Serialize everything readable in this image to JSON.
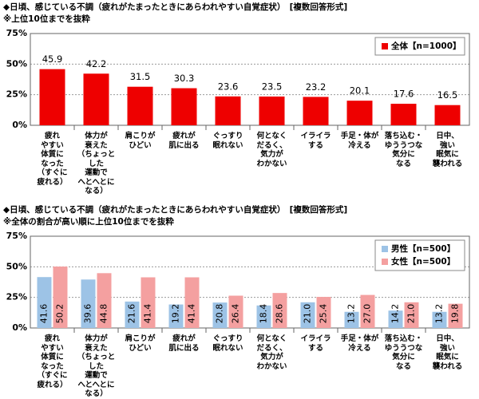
{
  "chart_data": [
    {
      "type": "bar",
      "title": "◆日頃、感じている不調（疲れがたまったときにあらわれやすい自覚症状）　[複数回答形式]",
      "subtitle": "※上位10位までを抜粋",
      "categories": [
        "疲れ\nやすい\n体質に\nなった\n（すぐに\n疲れる）",
        "体力が\n衰えた\n（ちょっとした\n運動で\nへとへとに\nなる）",
        "肩こりが\nひどい",
        "疲れが\n肌に出る",
        "ぐっすり\n眠れない",
        "何となく\nだるく、\n気力が\nわかない",
        "イライラ\nする",
        "手足・体が\n冷える",
        "落ち込む・\nゆううつな\n気分に\nなる",
        "日中、\n強い\n眠気に\n襲われる"
      ],
      "series": [
        {
          "name": "全体【n=1000】",
          "color": "#ee0000",
          "values": [
            45.9,
            42.2,
            31.5,
            30.3,
            23.6,
            23.5,
            23.2,
            20.1,
            17.6,
            16.5
          ]
        }
      ],
      "ylim": [
        0,
        75
      ],
      "yticks": [
        {
          "value": 0,
          "label": "0%"
        },
        {
          "value": 25,
          "label": "25%"
        },
        {
          "value": 50,
          "label": "50%"
        },
        {
          "value": 75,
          "label": "75%"
        }
      ],
      "grid": true,
      "legend": "upper right"
    },
    {
      "type": "bar",
      "title": "◆日頃、感じている不調（疲れがたまったときにあらわれやすい自覚症状）　[複数回答形式]",
      "subtitle": "※全体の割合が高い順に上位10位までを抜粋",
      "categories": [
        "疲れ\nやすい\n体質に\nなった\n（すぐに\n疲れる）",
        "体力が\n衰えた\n（ちょっとした\n運動で\nへとへとに\nなる）",
        "肩こりが\nひどい",
        "疲れが\n肌に出る",
        "ぐっすり\n眠れない",
        "何となく\nだるく、\n気力が\nわかない",
        "イライラ\nする",
        "手足・体が\n冷える",
        "落ち込む・\nゆううつな\n気分に\nなる",
        "日中、\n強い\n眠気に\n襲われる"
      ],
      "series": [
        {
          "name": "男性【n=500】",
          "color": "#9dc3e6",
          "values": [
            41.6,
            39.6,
            21.6,
            19.2,
            20.8,
            18.4,
            21,
            13.2,
            14.2,
            13.2
          ],
          "value_labels": [
            "41.6",
            "39.6",
            "21.6",
            "19.2",
            "20.8",
            "18.4",
            "21.0",
            "13.2",
            "14.2",
            "13.2"
          ]
        },
        {
          "name": "女性【n=500】",
          "color": "#f4a0a0",
          "values": [
            50.2,
            44.8,
            41.4,
            41.4,
            26.4,
            28.6,
            25.4,
            27,
            21,
            19.8
          ],
          "value_labels": [
            "50.2",
            "44.8",
            "41.4",
            "41.4",
            "26.4",
            "28.6",
            "25.4",
            "27.0",
            "21.0",
            "19.8"
          ]
        }
      ],
      "ylim": [
        0,
        75
      ],
      "yticks": [
        {
          "value": 0,
          "label": "0%"
        },
        {
          "value": 25,
          "label": "25%"
        },
        {
          "value": 50,
          "label": "50%"
        },
        {
          "value": 75,
          "label": "75%"
        }
      ],
      "grid": true,
      "legend": "upper right"
    }
  ]
}
